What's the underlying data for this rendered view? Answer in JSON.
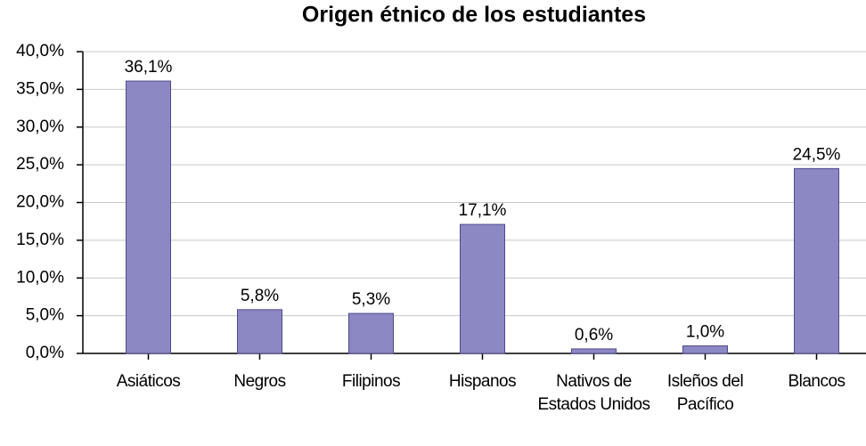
{
  "chart_data": {
    "type": "bar",
    "title": "Origen étnico de los estudiantes",
    "categories": [
      "Asiáticos",
      "Negros",
      "Filipinos",
      "Hispanos",
      "Nativos de Estados Unidos",
      "Isleños del Pacífico",
      "Blancos"
    ],
    "values": [
      36.1,
      5.8,
      5.3,
      17.1,
      0.6,
      1.0,
      24.5
    ],
    "value_labels": [
      "36,1%",
      "5,8%",
      "5,3%",
      "17,1%",
      "0,6%",
      "1,0%",
      "24,5%"
    ],
    "color": "#8c88c4",
    "ylim": [
      0,
      40
    ],
    "yticks": [
      {
        "value": 0,
        "label": "0,0%"
      },
      {
        "value": 5,
        "label": "5,0%"
      },
      {
        "value": 10,
        "label": "10,0%"
      },
      {
        "value": 15,
        "label": "15,0%"
      },
      {
        "value": 20,
        "label": "20,0%"
      },
      {
        "value": 25,
        "label": "25,0%"
      },
      {
        "value": 30,
        "label": "30,0%"
      },
      {
        "value": 35,
        "label": "35,0%"
      },
      {
        "value": 40,
        "label": "40,0%"
      }
    ],
    "grid": true
  }
}
